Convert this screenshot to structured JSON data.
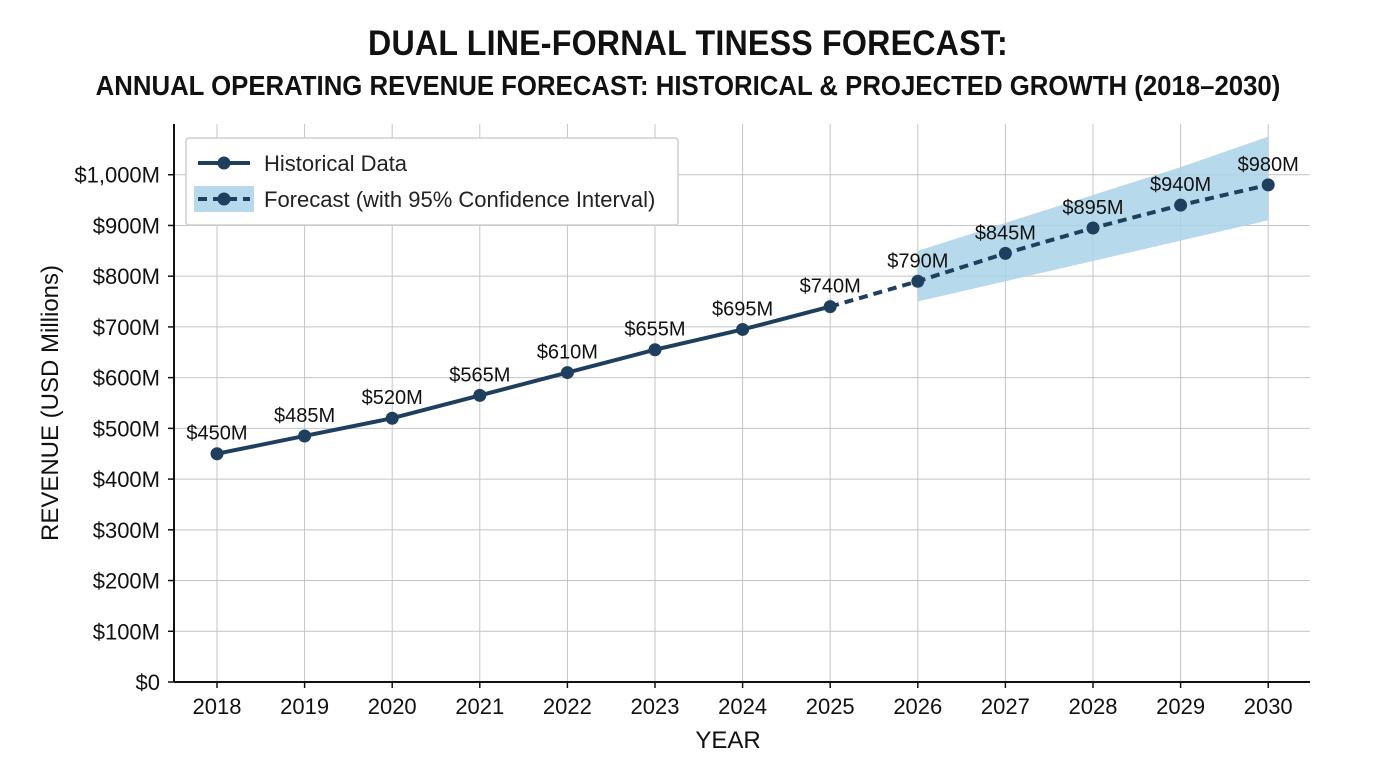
{
  "chart_data": {
    "type": "line",
    "title": "DUAL LINE-FORNAL TINESS FORECAST:",
    "subtitle": "ANNUAL OPERATING REVENUE FORECAST: HISTORICAL & PROJECTED GROWTH (2018–2030)",
    "xlabel": "YEAR",
    "ylabel": "REVENUE (USD Millions)",
    "categories": [
      "2018",
      "2019",
      "2020",
      "2021",
      "2022",
      "2023",
      "2024",
      "2025",
      "2026",
      "2027",
      "2028",
      "2029",
      "2030"
    ],
    "ylim": [
      0,
      1100
    ],
    "yticks": [
      0,
      100,
      200,
      300,
      400,
      500,
      600,
      700,
      800,
      900,
      1000
    ],
    "ytick_labels": [
      "$0",
      "$100M",
      "$200M",
      "$300M",
      "$400M",
      "$500M",
      "$600M",
      "$700M",
      "$800M",
      "$900M",
      "$1,000M"
    ],
    "grid": true,
    "legend_position": "top-left",
    "series": [
      {
        "name": "Historical Data",
        "style": "solid",
        "color": "#1f3f5f",
        "x": [
          "2018",
          "2019",
          "2020",
          "2021",
          "2022",
          "2023",
          "2024",
          "2025"
        ],
        "values": [
          450,
          485,
          520,
          565,
          610,
          655,
          695,
          740
        ],
        "labels": [
          "$450M",
          "$485M",
          "$520M",
          "$565M",
          "$610M",
          "$655M",
          "$695M",
          "$740M"
        ]
      },
      {
        "name": "Forecast (with 95% Confidence Interval)",
        "style": "dashed",
        "color": "#1f3f5f",
        "band_color": "#a9d3e8",
        "x": [
          "2025",
          "2026",
          "2027",
          "2028",
          "2029",
          "2030"
        ],
        "values": [
          740,
          790,
          845,
          895,
          940,
          980
        ],
        "labels": [
          "",
          "$790M",
          "$845M",
          "$895M",
          "$940M",
          "$980M"
        ],
        "ci_lower": [
          740,
          750,
          790,
          830,
          870,
          910
        ],
        "ci_upper": [
          740,
          850,
          905,
          960,
          1015,
          1075
        ]
      }
    ]
  }
}
